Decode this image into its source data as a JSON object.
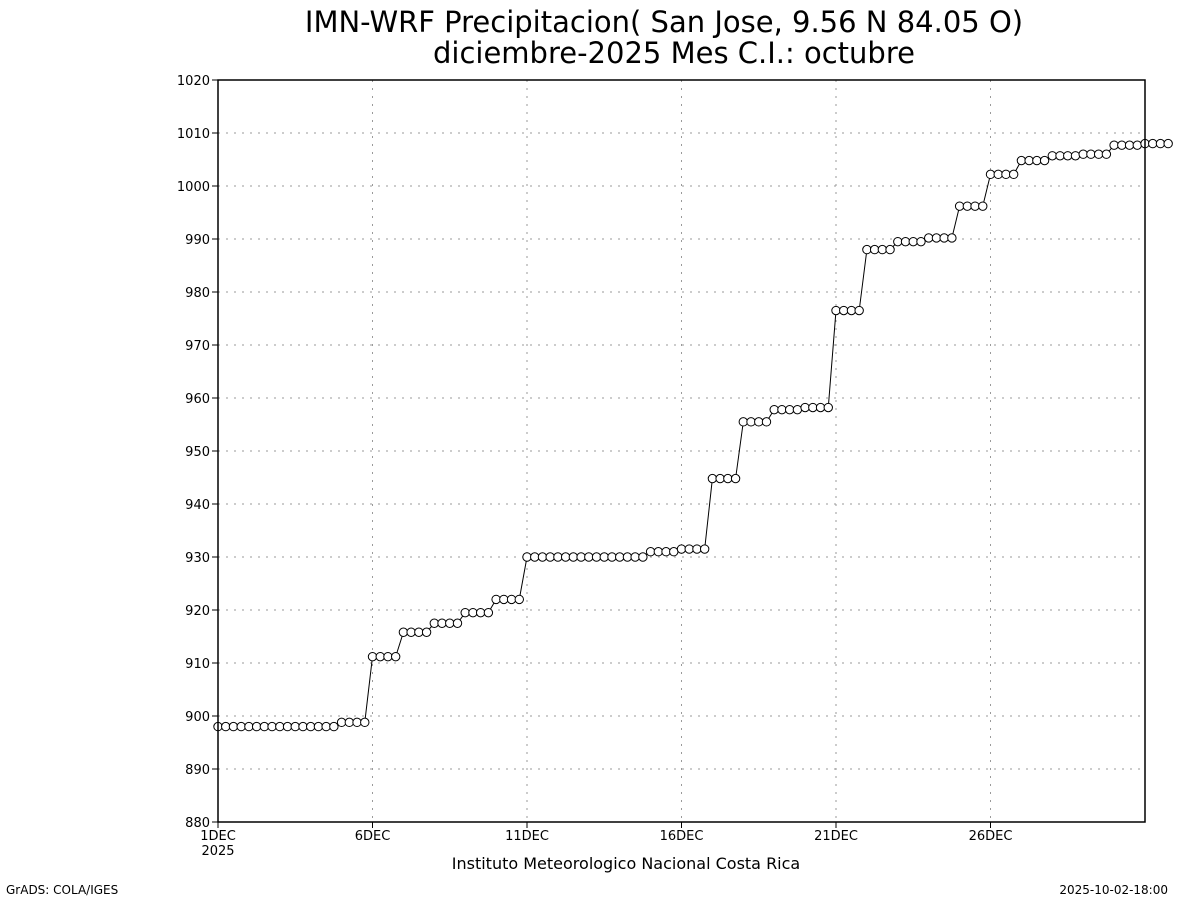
{
  "chart_data": {
    "type": "line",
    "title": "IMN-WRF  Precipitacion( San Jose, 9.56  N 84.05  O)",
    "subtitle": "diciembre-2025 Mes C.I.: octubre",
    "xlabel": "Instituto Meteorologico Nacional Costa Rica",
    "ylabel": "",
    "ylim": [
      880,
      1020
    ],
    "yticks": [
      "880",
      "890",
      "900",
      "910",
      "920",
      "930",
      "940",
      "950",
      "960",
      "970",
      "980",
      "990",
      "1000",
      "1010",
      "1020"
    ],
    "xlim_days": [
      1,
      31
    ],
    "xticks": [
      {
        "day": 1,
        "label": "1DEC",
        "sublabel": "2025"
      },
      {
        "day": 6,
        "label": "6DEC"
      },
      {
        "day": 11,
        "label": "11DEC"
      },
      {
        "day": 16,
        "label": "16DEC"
      },
      {
        "day": 21,
        "label": "21DEC"
      },
      {
        "day": 26,
        "label": "26DEC"
      }
    ],
    "grid": true,
    "marker": "open-circle",
    "series": [
      {
        "x_start_day": 1,
        "step_hours": 6,
        "values": [
          898,
          898,
          898,
          898,
          898,
          898,
          898,
          898,
          898,
          898,
          898,
          898,
          898,
          898,
          898,
          898,
          898.8,
          898.8,
          898.8,
          898.8,
          911.2,
          911.2,
          911.2,
          911.2,
          915.8,
          915.8,
          915.8,
          915.8,
          917.5,
          917.5,
          917.5,
          917.5,
          919.5,
          919.5,
          919.5,
          919.5,
          922,
          922,
          922,
          922,
          930,
          930,
          930,
          930,
          930,
          930,
          930,
          930,
          930,
          930,
          930,
          930,
          930,
          930,
          930,
          930,
          931,
          931,
          931,
          931,
          931.5,
          931.5,
          931.5,
          931.5,
          944.8,
          944.8,
          944.8,
          944.8,
          955.5,
          955.5,
          955.5,
          955.5,
          957.8,
          957.8,
          957.8,
          957.8,
          958.2,
          958.2,
          958.2,
          958.2,
          976.5,
          976.5,
          976.5,
          976.5,
          988,
          988,
          988,
          988,
          989.5,
          989.5,
          989.5,
          989.5,
          990.2,
          990.2,
          990.2,
          990.2,
          996.2,
          996.2,
          996.2,
          996.2,
          1002.2,
          1002.2,
          1002.2,
          1002.2,
          1004.8,
          1004.8,
          1004.8,
          1004.8,
          1005.7,
          1005.7,
          1005.7,
          1005.7,
          1006,
          1006,
          1006,
          1006,
          1007.7,
          1007.7,
          1007.7,
          1007.7,
          1008,
          1008,
          1008,
          1008
        ]
      }
    ]
  },
  "footer": {
    "left": "GrADS: COLA/IGES",
    "right": "2025-10-02-18:00"
  }
}
